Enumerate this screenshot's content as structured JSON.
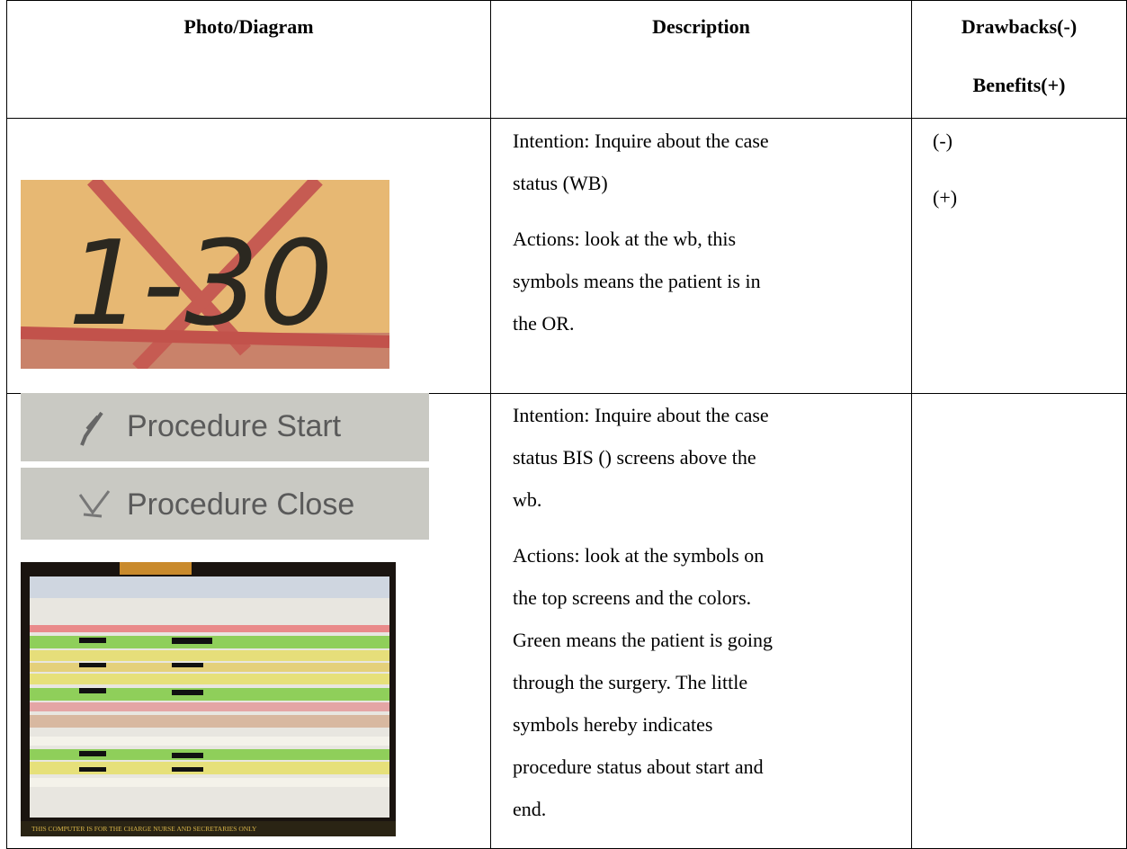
{
  "header": {
    "photo": "Photo/Diagram",
    "description": "Description",
    "drawbacks": "Drawbacks(-)",
    "benefits": "Benefits(+)"
  },
  "rows": [
    {
      "photo_text": "1-30",
      "description": [
        [
          "Intention: Inquire about the case",
          "status (WB)"
        ],
        [
          "Actions: look at the wb, this",
          "symbols means the patient is in",
          "the OR."
        ]
      ],
      "notes": [
        "(-)",
        "(+)"
      ]
    },
    {
      "photo_labels": [
        "Procedure Start",
        "Procedure Close"
      ],
      "screen_banner": "THIS COMPUTER IS FOR THE CHARGE NURSE AND SECRETARIES ONLY",
      "description": [
        [
          "Intention: Inquire about the case",
          "status BIS () screens above the",
          "wb."
        ],
        [
          "Actions: look at the symbols on",
          "the top screens and the colors.",
          "Green means the patient is going",
          "through the surgery. The little",
          "symbols hereby indicates",
          "procedure status about start and",
          "end."
        ]
      ]
    }
  ]
}
